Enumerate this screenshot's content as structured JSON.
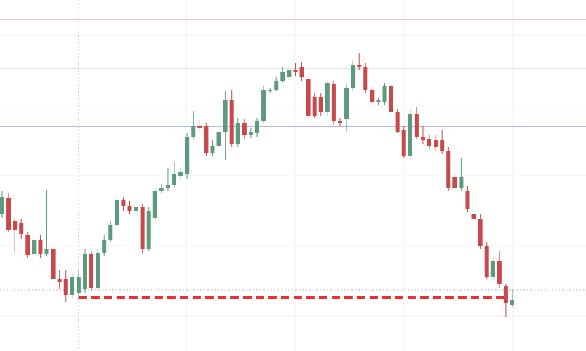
{
  "chart_data": {
    "type": "candlestick",
    "ylim": [
      0,
      500
    ],
    "up_color": "#5e9a7e",
    "down_color": "#c8484c",
    "open": [
      195,
      218,
      185,
      182,
      165,
      138,
      158,
      138,
      145,
      102,
      102,
      80,
      82,
      88,
      138,
      90,
      140,
      158,
      180,
      215,
      206,
      200,
      205,
      145,
      190,
      228,
      232,
      236,
      250,
      252,
      305,
      320,
      320,
      282,
      292,
      312,
      358,
      295,
      325,
      308,
      310,
      328,
      370,
      372,
      385,
      390,
      400,
      405,
      388,
      362,
      362,
      340,
      380,
      328,
      330,
      375,
      408,
      405,
      372,
      355,
      355,
      378,
      340,
      315,
      278,
      338,
      305,
      302,
      300,
      300,
      285,
      248,
      232,
      228,
      195,
      188,
      150,
      105,
      128,
      92,
      65
    ],
    "high": [
      228,
      225,
      190,
      188,
      170,
      162,
      165,
      230,
      150,
      115,
      115,
      110,
      115,
      145,
      142,
      145,
      165,
      185,
      220,
      220,
      214,
      215,
      210,
      205,
      232,
      238,
      260,
      270,
      260,
      310,
      342,
      330,
      325,
      300,
      325,
      370,
      372,
      332,
      330,
      318,
      332,
      378,
      375,
      390,
      405,
      408,
      410,
      412,
      392,
      367,
      368,
      385,
      385,
      332,
      380,
      415,
      425,
      410,
      378,
      360,
      382,
      382,
      345,
      320,
      345,
      348,
      320,
      308,
      308,
      315,
      290,
      252,
      275,
      235,
      200,
      195,
      155,
      132,
      142,
      95,
      88
    ],
    "low": [
      190,
      170,
      140,
      160,
      132,
      132,
      132,
      135,
      98,
      88,
      70,
      75,
      72,
      82,
      85,
      88,
      136,
      155,
      178,
      200,
      195,
      190,
      140,
      142,
      185,
      225,
      228,
      232,
      245,
      245,
      302,
      312,
      278,
      278,
      288,
      272,
      290,
      290,
      302,
      304,
      305,
      325,
      367,
      370,
      382,
      385,
      392,
      385,
      330,
      332,
      335,
      335,
      322,
      320,
      312,
      370,
      400,
      368,
      350,
      350,
      350,
      335,
      310,
      275,
      274,
      302,
      295,
      288,
      285,
      280,
      228,
      228,
      228,
      198,
      184,
      145,
      102,
      100,
      90,
      48,
      62
    ],
    "close": [
      220,
      173,
      172,
      167,
      137,
      158,
      138,
      145,
      102,
      98,
      80,
      105,
      105,
      138,
      90,
      140,
      158,
      180,
      215,
      206,
      200,
      205,
      145,
      200,
      228,
      232,
      236,
      252,
      255,
      305,
      320,
      318,
      282,
      292,
      312,
      358,
      295,
      325,
      308,
      312,
      328,
      372,
      372,
      385,
      398,
      400,
      397,
      390,
      335,
      335,
      340,
      382,
      328,
      325,
      375,
      408,
      405,
      372,
      355,
      358,
      378,
      340,
      312,
      278,
      338,
      305,
      300,
      292,
      290,
      285,
      232,
      232,
      248,
      202,
      188,
      150,
      105,
      128,
      95,
      68,
      72
    ],
    "levels": [
      {
        "value": 472,
        "color": "#e8a0a8",
        "style": "solid"
      },
      {
        "value": 402,
        "color": "#cfcfd6",
        "style": "solid"
      },
      {
        "value": 320,
        "color": "#8a8ed8",
        "style": "solid"
      },
      {
        "value": 76,
        "color": "#e83030",
        "style": "dashed",
        "x_from": 12
      }
    ],
    "crosshair": {
      "index": 12,
      "value": 87,
      "color": "#b8b8c0"
    }
  }
}
